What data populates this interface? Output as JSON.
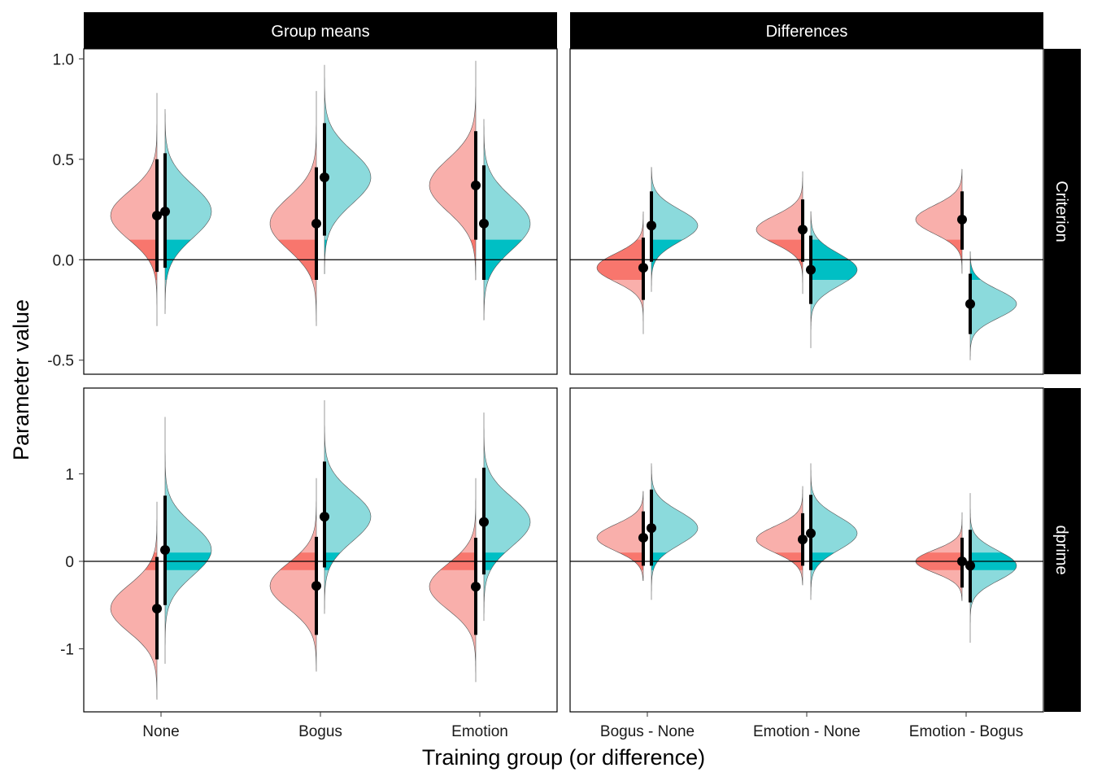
{
  "chart_data": {
    "type": "violin",
    "xlabel": "Training group (or difference)",
    "ylabel": "Parameter value",
    "colors": {
      "red": "#F8766D",
      "teal": "#00BFC4"
    },
    "band": [
      -0.1,
      0.1
    ],
    "col_strips": [
      "Group means",
      "Differences"
    ],
    "row_strips": [
      "Criterion",
      "dprime"
    ],
    "x_categories": [
      [
        "None",
        "Bogus",
        "Emotion"
      ],
      [
        "Bogus - None",
        "Emotion - None",
        "Emotion - Bogus"
      ]
    ],
    "rows": [
      {
        "name": "Criterion",
        "ylim": [
          -0.57,
          1.05
        ],
        "yticks": [
          -0.5,
          0.0,
          0.5,
          1.0
        ],
        "ytick_labels": [
          "-0.5",
          "0.0",
          "0.5",
          "1.0"
        ]
      },
      {
        "name": "dprime",
        "ylim": [
          -1.72,
          1.98
        ],
        "yticks": [
          -1,
          0,
          1
        ],
        "ytick_labels": [
          "-1",
          "0",
          "1"
        ]
      }
    ],
    "panels": [
      {
        "row": 0,
        "col": 0,
        "violins": [
          {
            "cat": 0,
            "side": "left",
            "mean": 0.22,
            "ci": [
              -0.06,
              0.5
            ],
            "mode": 0.22,
            "sd": 0.12,
            "min": -0.33,
            "max": 0.83
          },
          {
            "cat": 0,
            "side": "right",
            "mean": 0.24,
            "ci": [
              -0.04,
              0.53
            ],
            "mode": 0.24,
            "sd": 0.13,
            "min": -0.27,
            "max": 0.75
          },
          {
            "cat": 1,
            "side": "left",
            "mean": 0.18,
            "ci": [
              -0.1,
              0.46
            ],
            "mode": 0.18,
            "sd": 0.13,
            "min": -0.33,
            "max": 0.84
          },
          {
            "cat": 1,
            "side": "right",
            "mean": 0.41,
            "ci": [
              0.12,
              0.68
            ],
            "mode": 0.41,
            "sd": 0.13,
            "min": -0.07,
            "max": 0.97
          },
          {
            "cat": 2,
            "side": "left",
            "mean": 0.37,
            "ci": [
              0.1,
              0.64
            ],
            "mode": 0.37,
            "sd": 0.13,
            "min": -0.1,
            "max": 0.99
          },
          {
            "cat": 2,
            "side": "right",
            "mean": 0.18,
            "ci": [
              -0.1,
              0.47
            ],
            "mode": 0.18,
            "sd": 0.13,
            "min": -0.3,
            "max": 0.7
          }
        ]
      },
      {
        "row": 0,
        "col": 1,
        "violins": [
          {
            "cat": 0,
            "side": "left",
            "mean": -0.04,
            "ci": [
              -0.2,
              0.11
            ],
            "mode": -0.04,
            "sd": 0.07,
            "min": -0.37,
            "max": 0.24
          },
          {
            "cat": 0,
            "side": "right",
            "mean": 0.17,
            "ci": [
              -0.01,
              0.34
            ],
            "mode": 0.17,
            "sd": 0.08,
            "min": -0.16,
            "max": 0.46
          },
          {
            "cat": 1,
            "side": "left",
            "mean": 0.15,
            "ci": [
              -0.01,
              0.3
            ],
            "mode": 0.15,
            "sd": 0.07,
            "min": -0.17,
            "max": 0.44
          },
          {
            "cat": 1,
            "side": "right",
            "mean": -0.05,
            "ci": [
              -0.22,
              0.12
            ],
            "mode": -0.05,
            "sd": 0.08,
            "min": -0.44,
            "max": 0.24
          },
          {
            "cat": 2,
            "side": "left",
            "mean": 0.2,
            "ci": [
              0.05,
              0.34
            ],
            "mode": 0.2,
            "sd": 0.07,
            "min": -0.07,
            "max": 0.45
          },
          {
            "cat": 2,
            "side": "right",
            "mean": -0.22,
            "ci": [
              -0.37,
              -0.07
            ],
            "mode": -0.22,
            "sd": 0.07,
            "min": -0.5,
            "max": 0.04
          }
        ]
      },
      {
        "row": 1,
        "col": 0,
        "violins": [
          {
            "cat": 0,
            "side": "left",
            "mean": -0.54,
            "ci": [
              -1.12,
              0.05
            ],
            "mode": -0.54,
            "sd": 0.27,
            "min": -1.58,
            "max": 0.68
          },
          {
            "cat": 0,
            "side": "right",
            "mean": 0.13,
            "ci": [
              -0.5,
              0.75
            ],
            "mode": 0.13,
            "sd": 0.29,
            "min": -1.17,
            "max": 1.65
          },
          {
            "cat": 1,
            "side": "left",
            "mean": -0.28,
            "ci": [
              -0.84,
              0.28
            ],
            "mode": -0.28,
            "sd": 0.26,
            "min": -1.26,
            "max": 0.95
          },
          {
            "cat": 1,
            "side": "right",
            "mean": 0.51,
            "ci": [
              -0.07,
              1.14
            ],
            "mode": 0.51,
            "sd": 0.28,
            "min": -0.6,
            "max": 1.84
          },
          {
            "cat": 2,
            "side": "left",
            "mean": -0.29,
            "ci": [
              -0.84,
              0.27
            ],
            "mode": -0.29,
            "sd": 0.26,
            "min": -1.38,
            "max": 0.95
          },
          {
            "cat": 2,
            "side": "right",
            "mean": 0.45,
            "ci": [
              -0.15,
              1.07
            ],
            "mode": 0.45,
            "sd": 0.28,
            "min": -0.68,
            "max": 1.7
          }
        ]
      },
      {
        "row": 1,
        "col": 1,
        "violins": [
          {
            "cat": 0,
            "side": "left",
            "mean": 0.27,
            "ci": [
              -0.05,
              0.57
            ],
            "mode": 0.27,
            "sd": 0.15,
            "min": -0.22,
            "max": 0.8
          },
          {
            "cat": 0,
            "side": "right",
            "mean": 0.38,
            "ci": [
              -0.05,
              0.82
            ],
            "mode": 0.38,
            "sd": 0.19,
            "min": -0.44,
            "max": 1.12
          },
          {
            "cat": 1,
            "side": "left",
            "mean": 0.25,
            "ci": [
              -0.05,
              0.55
            ],
            "mode": 0.25,
            "sd": 0.15,
            "min": -0.27,
            "max": 0.86
          },
          {
            "cat": 1,
            "side": "right",
            "mean": 0.32,
            "ci": [
              -0.1,
              0.76
            ],
            "mode": 0.32,
            "sd": 0.19,
            "min": -0.44,
            "max": 1.12
          },
          {
            "cat": 2,
            "side": "left",
            "mean": 0.0,
            "ci": [
              -0.3,
              0.27
            ],
            "mode": 0.0,
            "sd": 0.13,
            "min": -0.45,
            "max": 0.56
          },
          {
            "cat": 2,
            "side": "right",
            "mean": -0.05,
            "ci": [
              -0.47,
              0.36
            ],
            "mode": -0.05,
            "sd": 0.17,
            "min": -0.93,
            "max": 0.78
          }
        ]
      }
    ]
  }
}
